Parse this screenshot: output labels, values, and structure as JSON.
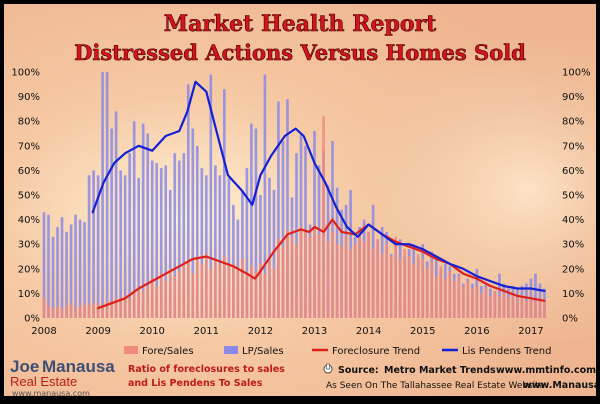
{
  "header": {
    "title_line1": "Market Health Report",
    "title_line2": "Distressed Actions Versus Homes Sold"
  },
  "colors": {
    "foreclosure_bar": "#f08a7e",
    "lp_bar": "#8a8ae6",
    "foreclosure_trend": "#e0201a",
    "lis_pendens_trend": "#1320d4",
    "title": "#d6121b",
    "background": "#f2c9a8"
  },
  "legend": {
    "items": [
      {
        "label": "Fore/Sales",
        "kind": "bar",
        "color": "#f08a7e"
      },
      {
        "label": "LP/Sales",
        "kind": "bar",
        "color": "#8a8ae6"
      },
      {
        "label": "Foreclosure Trend",
        "kind": "line",
        "color": "#e0201a"
      },
      {
        "label": "Lis Pendens Trend",
        "kind": "line",
        "color": "#1320d4"
      }
    ]
  },
  "footer": {
    "brand_name_1": "Joe",
    "brand_name_2": "Manausa",
    "brand_sub": "Real Estate",
    "brand_url": "www.manausa.com",
    "note_line1": "Ratio of foreclosures to sales",
    "note_line2": "and Lis Pendens To Sales",
    "source_label": "Source:",
    "source_text": "Metro Market Trends",
    "source_url": "www.mmtinfo.com",
    "website_text": "As Seen On The Tallahassee Real Estate Website",
    "website_url": "www.Manausa.com"
  },
  "chart_data": {
    "type": "bar",
    "x_ticks": [
      "2008",
      "2009",
      "2010",
      "2011",
      "2012",
      "2013",
      "2014",
      "2015",
      "2016",
      "2017"
    ],
    "y_ticks": [
      "0%",
      "10%",
      "20%",
      "30%",
      "40%",
      "50%",
      "60%",
      "70%",
      "80%",
      "90%",
      "100%"
    ],
    "xlim": [
      2008,
      2017.5
    ],
    "ylim": [
      0,
      100
    ],
    "y_unit": "%",
    "series": [
      {
        "name": "Fore/Sales",
        "kind": "bar",
        "x": [
          2008.0,
          2008.083,
          2008.167,
          2008.25,
          2008.333,
          2008.417,
          2008.5,
          2008.583,
          2008.667,
          2008.75,
          2008.833,
          2008.917,
          2009.0,
          2009.083,
          2009.167,
          2009.25,
          2009.333,
          2009.417,
          2009.5,
          2009.583,
          2009.667,
          2009.75,
          2009.833,
          2009.917,
          2010.0,
          2010.083,
          2010.167,
          2010.25,
          2010.333,
          2010.417,
          2010.5,
          2010.583,
          2010.667,
          2010.75,
          2010.833,
          2010.917,
          2011.0,
          2011.083,
          2011.167,
          2011.25,
          2011.333,
          2011.417,
          2011.5,
          2011.583,
          2011.667,
          2011.75,
          2011.833,
          2011.917,
          2012.0,
          2012.083,
          2012.167,
          2012.25,
          2012.333,
          2012.417,
          2012.5,
          2012.583,
          2012.667,
          2012.75,
          2012.833,
          2012.917,
          2013.0,
          2013.083,
          2013.167,
          2013.25,
          2013.333,
          2013.417,
          2013.5,
          2013.583,
          2013.667,
          2013.75,
          2013.833,
          2013.917,
          2014.0,
          2014.083,
          2014.167,
          2014.25,
          2014.333,
          2014.417,
          2014.5,
          2014.583,
          2014.667,
          2014.75,
          2014.833,
          2014.917,
          2015.0,
          2015.083,
          2015.167,
          2015.25,
          2015.333,
          2015.417,
          2015.5,
          2015.583,
          2015.667,
          2015.75,
          2015.833,
          2015.917,
          2016.0,
          2016.083,
          2016.167,
          2016.25,
          2016.333,
          2016.417,
          2016.5,
          2016.583,
          2016.667,
          2016.75,
          2016.833,
          2016.917,
          2017.0,
          2017.083,
          2017.167,
          2017.25
        ],
        "values": [
          8,
          5,
          4,
          5,
          4,
          5,
          6,
          4,
          5,
          6,
          5,
          6,
          6,
          5,
          7,
          6,
          8,
          7,
          9,
          8,
          10,
          12,
          11,
          13,
          16,
          13,
          18,
          15,
          20,
          17,
          19,
          21,
          23,
          18,
          24,
          22,
          26,
          20,
          24,
          22,
          25,
          21,
          22,
          20,
          24,
          18,
          21,
          19,
          22,
          18,
          23,
          20,
          32,
          29,
          36,
          33,
          30,
          37,
          35,
          33,
          38,
          34,
          82,
          31,
          35,
          30,
          29,
          33,
          28,
          30,
          34,
          31,
          35,
          28,
          32,
          26,
          30,
          25,
          33,
          24,
          28,
          25,
          22,
          26,
          24,
          20,
          23,
          17,
          21,
          16,
          19,
          15,
          17,
          13,
          15,
          12,
          13,
          10,
          12,
          9,
          11,
          9,
          10,
          8,
          9,
          8,
          9,
          7,
          8,
          7,
          8,
          7
        ]
      },
      {
        "name": "LP/Sales",
        "kind": "bar",
        "x": [
          2008.0,
          2008.083,
          2008.167,
          2008.25,
          2008.333,
          2008.417,
          2008.5,
          2008.583,
          2008.667,
          2008.75,
          2008.833,
          2008.917,
          2009.0,
          2009.083,
          2009.167,
          2009.25,
          2009.333,
          2009.417,
          2009.5,
          2009.583,
          2009.667,
          2009.75,
          2009.833,
          2009.917,
          2010.0,
          2010.083,
          2010.167,
          2010.25,
          2010.333,
          2010.417,
          2010.5,
          2010.583,
          2010.667,
          2010.75,
          2010.833,
          2010.917,
          2011.0,
          2011.083,
          2011.167,
          2011.25,
          2011.333,
          2011.417,
          2011.5,
          2011.583,
          2011.667,
          2011.75,
          2011.833,
          2011.917,
          2012.0,
          2012.083,
          2012.167,
          2012.25,
          2012.333,
          2012.417,
          2012.5,
          2012.583,
          2012.667,
          2012.75,
          2012.833,
          2012.917,
          2013.0,
          2013.083,
          2013.167,
          2013.25,
          2013.333,
          2013.417,
          2013.5,
          2013.583,
          2013.667,
          2013.75,
          2013.833,
          2013.917,
          2014.0,
          2014.083,
          2014.167,
          2014.25,
          2014.333,
          2014.417,
          2014.5,
          2014.583,
          2014.667,
          2014.75,
          2014.833,
          2014.917,
          2015.0,
          2015.083,
          2015.167,
          2015.25,
          2015.333,
          2015.417,
          2015.5,
          2015.583,
          2015.667,
          2015.75,
          2015.833,
          2015.917,
          2016.0,
          2016.083,
          2016.167,
          2016.25,
          2016.333,
          2016.417,
          2016.5,
          2016.583,
          2016.667,
          2016.75,
          2016.833,
          2016.917,
          2017.0,
          2017.083,
          2017.167,
          2017.25
        ],
        "values": [
          43,
          42,
          33,
          37,
          41,
          35,
          38,
          42,
          40,
          39,
          58,
          60,
          58,
          100,
          100,
          77,
          84,
          60,
          58,
          67,
          80,
          57,
          79,
          75,
          64,
          63,
          61,
          62,
          52,
          67,
          64,
          67,
          95,
          77,
          70,
          61,
          58,
          99,
          62,
          58,
          93,
          57,
          46,
          40,
          52,
          61,
          79,
          77,
          50,
          99,
          57,
          52,
          88,
          72,
          89,
          49,
          67,
          75,
          70,
          38,
          76,
          62,
          68,
          54,
          72,
          53,
          44,
          46,
          52,
          33,
          37,
          40,
          35,
          46,
          32,
          37,
          35,
          26,
          31,
          32,
          25,
          28,
          30,
          24,
          30,
          23,
          27,
          25,
          20,
          22,
          21,
          18,
          18,
          14,
          16,
          14,
          20,
          13,
          14,
          12,
          11,
          18,
          14,
          12,
          13,
          12,
          13,
          14,
          16,
          18,
          14,
          12
        ]
      },
      {
        "name": "Foreclosure Trend",
        "kind": "line",
        "x": [
          2009.0,
          2009.25,
          2009.5,
          2009.75,
          2010.0,
          2010.25,
          2010.5,
          2010.75,
          2011.0,
          2011.25,
          2011.5,
          2011.75,
          2011.9,
          2012.0,
          2012.25,
          2012.5,
          2012.75,
          2012.9,
          2013.0,
          2013.17,
          2013.33,
          2013.5,
          2013.75,
          2014.0,
          2014.25,
          2014.5,
          2014.75,
          2015.0,
          2015.25,
          2015.5,
          2015.75,
          2016.0,
          2016.25,
          2016.5,
          2016.75,
          2017.0,
          2017.25
        ],
        "values": [
          4,
          6,
          8,
          12,
          15,
          18,
          21,
          24,
          25,
          23,
          21,
          18,
          16,
          19,
          27,
          34,
          36,
          35,
          37,
          35,
          40,
          35,
          34,
          38,
          34,
          31,
          29,
          27,
          24,
          22,
          18,
          16,
          13,
          11,
          9,
          8,
          7
        ]
      },
      {
        "name": "Lis Pendens Trend",
        "kind": "line",
        "x": [
          2008.9,
          2009.1,
          2009.3,
          2009.5,
          2009.75,
          2010.0,
          2010.25,
          2010.5,
          2010.65,
          2010.8,
          2011.0,
          2011.2,
          2011.4,
          2011.65,
          2011.85,
          2012.0,
          2012.2,
          2012.45,
          2012.65,
          2012.8,
          2013.0,
          2013.2,
          2013.4,
          2013.6,
          2013.8,
          2014.0,
          2014.25,
          2014.5,
          2014.75,
          2015.0,
          2015.25,
          2015.5,
          2015.75,
          2016.0,
          2016.25,
          2016.5,
          2016.75,
          2017.0,
          2017.25
        ],
        "values": [
          43,
          55,
          63,
          67,
          70,
          68,
          74,
          76,
          84,
          96,
          92,
          75,
          58,
          52,
          46,
          58,
          66,
          74,
          77,
          74,
          63,
          55,
          45,
          37,
          33,
          38,
          34,
          30,
          30,
          28,
          25,
          22,
          20,
          17,
          15,
          13,
          12,
          12,
          11
        ]
      }
    ],
    "grid": false,
    "legend_position": "bottom"
  }
}
